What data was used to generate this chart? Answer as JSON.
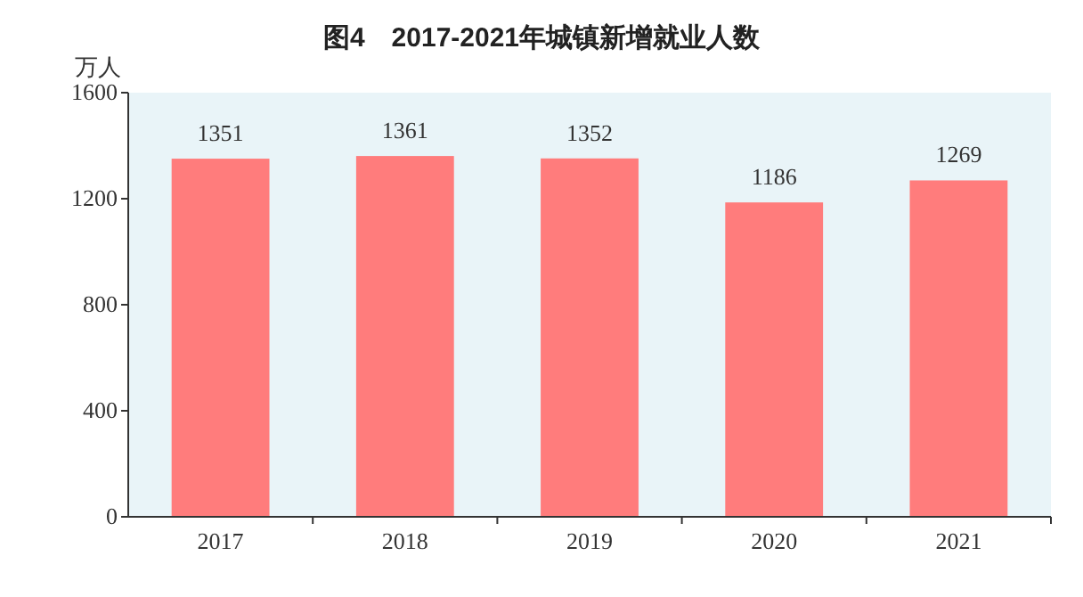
{
  "chart_data": {
    "type": "bar",
    "title": "图4　2017-2021年城镇新增就业人数",
    "ylabel": "万人",
    "categories": [
      "2017",
      "2018",
      "2019",
      "2020",
      "2021"
    ],
    "values": [
      1351,
      1361,
      1352,
      1186,
      1269
    ],
    "color": "#ff7c7c",
    "ylim": [
      0,
      1600
    ],
    "yticks": [
      0,
      400,
      800,
      1200,
      1600
    ],
    "data_labels": true,
    "grid": false
  }
}
